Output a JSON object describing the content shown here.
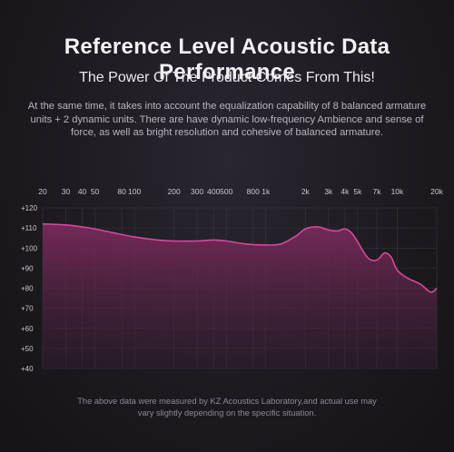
{
  "header": {
    "title": "Reference Level Acoustic Data Performance",
    "subtitle": "The Power Of The Product Comes From This!",
    "description": "At the same time, it takes into account the equalization capability of 8 balanced armature units + 2 dynamic units. There are have dynamic low-frequency Ambience and sense of force, as well as bright resolution and cohesive of balanced armature."
  },
  "footnote": "The above data were measured by KZ Acoustics Laboratory,and actual use may vary slightly depending on the specific situation.",
  "colors": {
    "curve": "#d9479a",
    "fill_top": "#7a2a5c",
    "grid": "#3a363d",
    "text": "#c9c6cc"
  },
  "chart_data": {
    "type": "area",
    "title": "",
    "xlabel": "",
    "ylabel": "",
    "x_scale": "log",
    "xlim": [
      20,
      20000
    ],
    "ylim": [
      40,
      120
    ],
    "grid": true,
    "legend": "none",
    "x_tick_values": [
      20,
      30,
      40,
      50,
      80,
      100,
      200,
      300,
      400,
      500,
      800,
      1000,
      2000,
      3000,
      4000,
      5000,
      7000,
      10000,
      20000
    ],
    "x_tick_labels": [
      "20",
      "30",
      "40",
      "50",
      "80",
      "100",
      "200",
      "300",
      "400",
      "500",
      "800",
      "1k",
      "2k",
      "3k",
      "4k",
      "5k",
      "7k",
      "10k",
      "20k"
    ],
    "y_tick_values": [
      120,
      110,
      100,
      90,
      80,
      70,
      60,
      50,
      40
    ],
    "y_tick_labels": [
      "+120",
      "+110",
      "+100",
      "+90",
      "+80",
      "+70",
      "+60",
      "+50",
      "+40"
    ],
    "series": [
      {
        "x": [
          20,
          30,
          40,
          50,
          70,
          100,
          150,
          200,
          300,
          400,
          500,
          700,
          1000,
          1300,
          1700,
          2000,
          2500,
          3000,
          3500,
          4000,
          4500,
          5000,
          6000,
          7000,
          8000,
          9000,
          10000,
          12000,
          15000,
          18000,
          20000
        ],
        "y": [
          112,
          111.5,
          110.5,
          109.5,
          107.5,
          105.5,
          104,
          103.5,
          103.5,
          104,
          103.5,
          102,
          101.5,
          102,
          106,
          109.5,
          110.5,
          109,
          108.5,
          109.5,
          107.5,
          103,
          95,
          94,
          97.5,
          95.5,
          89,
          85,
          82,
          78,
          80
        ]
      }
    ]
  }
}
